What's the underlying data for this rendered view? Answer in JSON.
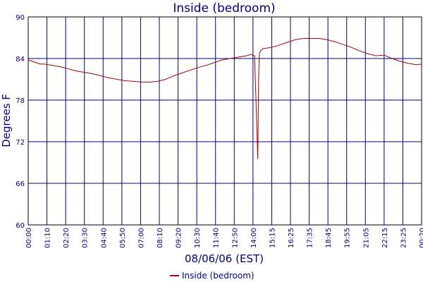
{
  "chart_data": {
    "type": "line",
    "title": "Inside (bedroom)",
    "xlabel": "08/06/06 (EST)",
    "ylabel": "Degrees F",
    "ylim": [
      60,
      90
    ],
    "yticks": [
      "60",
      "66",
      "72",
      "78",
      "84",
      "90"
    ],
    "xticks": [
      "00:00",
      "01:10",
      "02:20",
      "03:30",
      "04:40",
      "05:50",
      "07:00",
      "08:10",
      "09:20",
      "10:30",
      "11:40",
      "12:50",
      "14:00",
      "15:15",
      "16:25",
      "17:35",
      "18:45",
      "19:55",
      "21:05",
      "22:15",
      "23:25",
      "00:20"
    ],
    "grid": true,
    "legend_position": "bottom",
    "series": [
      {
        "name": "Inside (bedroom)",
        "color": "#a00000",
        "x_hours": [
          0,
          0.25,
          0.5,
          0.75,
          1.0,
          1.5,
          2.0,
          2.5,
          3.0,
          3.5,
          4.0,
          4.5,
          5.0,
          5.5,
          6.0,
          6.5,
          7.0,
          7.5,
          8.0,
          8.5,
          9.0,
          9.5,
          10.0,
          10.5,
          11.0,
          11.5,
          12.0,
          12.5,
          13.0,
          13.5,
          13.75,
          14.0,
          14.15,
          14.2,
          14.25,
          14.3,
          14.35,
          14.4,
          14.5,
          15.0,
          15.5,
          16.0,
          16.5,
          17.0,
          17.5,
          18.0,
          18.5,
          19.0,
          19.5,
          20.0,
          20.5,
          21.0,
          21.5,
          22.0,
          22.5,
          23.0,
          23.5,
          24.0,
          24.33
        ],
        "values": [
          83.8,
          83.6,
          83.4,
          83.2,
          83.2,
          83.0,
          82.8,
          82.5,
          82.2,
          82.0,
          81.8,
          81.5,
          81.2,
          81.0,
          80.8,
          80.7,
          80.6,
          80.6,
          80.7,
          81.0,
          81.5,
          81.9,
          82.3,
          82.7,
          83.0,
          83.4,
          83.8,
          84.0,
          84.2,
          84.4,
          84.6,
          84.4,
          73.5,
          69.5,
          81.0,
          84.8,
          85.0,
          85.2,
          85.4,
          85.6,
          85.9,
          86.3,
          86.7,
          86.9,
          86.9,
          86.9,
          86.7,
          86.4,
          86.0,
          85.6,
          85.1,
          84.7,
          84.4,
          84.5,
          84.0,
          83.6,
          83.3,
          83.1,
          83.2
        ]
      }
    ]
  }
}
